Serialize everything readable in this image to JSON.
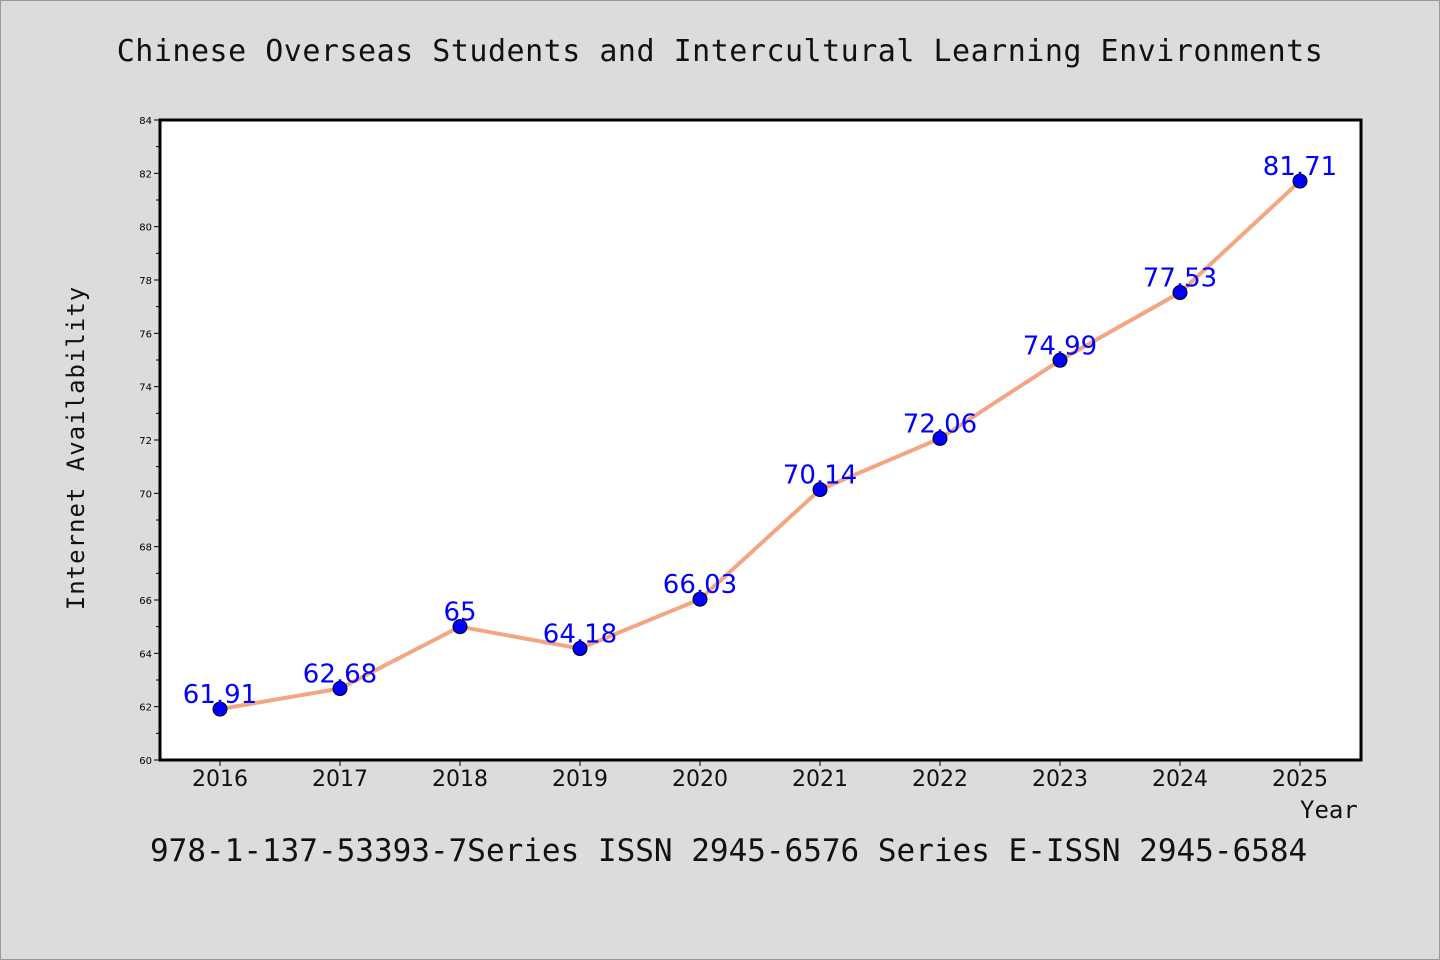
{
  "chart_data": {
    "type": "line",
    "title": "Chinese Overseas Students and Intercultural Learning Environments",
    "xlabel": "Year",
    "ylabel": "Internet Availability",
    "categories": [
      "2016",
      "2017",
      "2018",
      "2019",
      "2020",
      "2021",
      "2022",
      "2023",
      "2024",
      "2025"
    ],
    "series": [
      {
        "values": [
          61.91,
          62.68,
          65,
          64.18,
          66.03,
          70.14,
          72.06,
          74.99,
          77.53,
          81.71
        ],
        "labels": [
          "61.91",
          "62.68",
          "65",
          "64.18",
          "66.03",
          "70.14",
          "72.06",
          "74.99",
          "77.53",
          "81.71"
        ]
      }
    ],
    "ylim": [
      60,
      84
    ],
    "yticks": [
      "60",
      "62",
      "64",
      "66",
      "68",
      "70",
      "72",
      "74",
      "76",
      "78",
      "80",
      "82",
      "84"
    ],
    "grid": false,
    "legend": "none",
    "colors": {
      "line": "#f4a582",
      "marker": "#0000ff",
      "label": "#0000ff",
      "background": "#dcdcdc",
      "plot_background": "#ffffff"
    }
  },
  "footer": "978-1-137-53393-7Series ISSN 2945-6576 Series E-ISSN 2945-6584"
}
